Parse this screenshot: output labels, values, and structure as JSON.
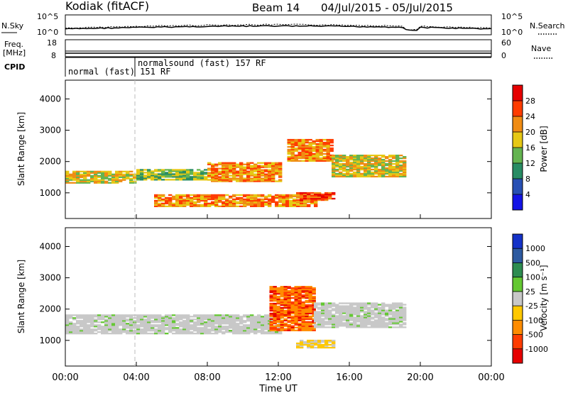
{
  "header": {
    "station": "Kodiak (fitACF)",
    "beam": "Beam 14",
    "date_range": "04/Jul/2015 - 05/Jul/2015"
  },
  "noise_panel": {
    "left_label": "N.Sky",
    "right_label": "N.Search",
    "left_ticks": [
      "10^5",
      "10^0"
    ],
    "right_ticks": [
      "10^5",
      "10^0"
    ]
  },
  "freq_panel": {
    "left_label_1": "Freq.",
    "left_label_2": "[MHz]",
    "right_label": "Nave",
    "left_ticks": [
      "18",
      "8"
    ],
    "right_ticks": [
      "60",
      "0"
    ]
  },
  "cpid": {
    "label": "CPID",
    "segments": [
      {
        "name": "normal (fast)",
        "id": "151",
        "unit": "RF",
        "start_hour": 0
      },
      {
        "name": "normalsound (fast)",
        "id": "157",
        "unit": "RF",
        "start_hour": 4
      }
    ]
  },
  "x_axis": {
    "label": "Time UT",
    "ticks": [
      "00:00",
      "04:00",
      "08:00",
      "12:00",
      "16:00",
      "20:00",
      "00:00"
    ],
    "tick_hours": [
      0,
      4,
      8,
      12,
      16,
      20,
      24
    ],
    "range_hours": [
      0,
      24
    ]
  },
  "chart_data": [
    {
      "type": "heatmap",
      "ylabel": "Slant Range [km]",
      "yticks": [
        1000,
        2000,
        3000,
        4000
      ],
      "ylim": [
        180,
        4600
      ],
      "xlim_hours": [
        0,
        24
      ],
      "colorbar": {
        "label": "Power [dB]",
        "ticks": [
          "4",
          "8",
          "12",
          "16",
          "20",
          "24",
          "28"
        ],
        "colors": [
          "#1414e6",
          "#2850b4",
          "#288c64",
          "#64b450",
          "#e6c814",
          "#f08c14",
          "#ff3c00",
          "#e60000"
        ]
      },
      "bands": [
        {
          "hours": [
            0,
            4
          ],
          "range_km": [
            1300,
            1700
          ],
          "level": "medium-high"
        },
        {
          "hours": [
            4,
            8
          ],
          "range_km": [
            1400,
            1750
          ],
          "level": "medium"
        },
        {
          "hours": [
            8,
            12
          ],
          "range_km": [
            1350,
            1950
          ],
          "level": "high"
        },
        {
          "hours": [
            5,
            14
          ],
          "range_km": [
            550,
            950
          ],
          "level": "high"
        },
        {
          "hours": [
            12.5,
            15
          ],
          "range_km": [
            2000,
            2700
          ],
          "level": "high"
        },
        {
          "hours": [
            15,
            19
          ],
          "range_km": [
            1500,
            2200
          ],
          "level": "medium-high"
        },
        {
          "hours": [
            13,
            15
          ],
          "range_km": [
            750,
            1000
          ],
          "level": "very high"
        }
      ]
    },
    {
      "type": "heatmap",
      "ylabel": "Slant Range [km]",
      "yticks": [
        1000,
        2000,
        3000,
        4000
      ],
      "ylim": [
        180,
        4600
      ],
      "xlim_hours": [
        0,
        24
      ],
      "colorbar": {
        "label": "Velocity [m s^-1]",
        "ticks": [
          "1000",
          "500",
          "100",
          "25",
          "-25",
          "-100",
          "-500",
          "-1000"
        ],
        "colors": [
          "#1432c8",
          "#2d5aa0",
          "#2d8c50",
          "#64c832",
          "#c8c8c8",
          "#ffc800",
          "#ff8c00",
          "#ff3c00",
          "#e60000"
        ]
      },
      "bands": [
        {
          "hours": [
            0,
            12
          ],
          "range_km": [
            1200,
            1800
          ],
          "velocity": "near zero (grey)"
        },
        {
          "hours": [
            11.5,
            14
          ],
          "range_km": [
            1300,
            2700
          ],
          "velocity": "-100 to -1000 (orange/red)"
        },
        {
          "hours": [
            13,
            15
          ],
          "range_km": [
            750,
            1000
          ],
          "velocity": "-25 to -100 (yellow)"
        },
        {
          "hours": [
            14,
            19
          ],
          "range_km": [
            1400,
            2200
          ],
          "velocity": "near zero (grey)"
        }
      ]
    }
  ]
}
